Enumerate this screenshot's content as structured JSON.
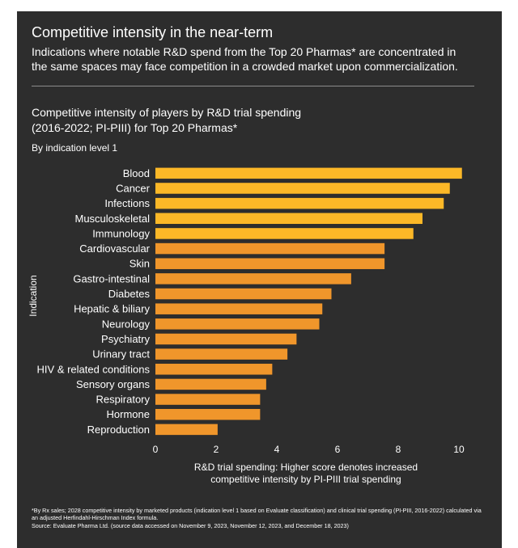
{
  "header": {
    "title": "Competitive intensity in the near-term",
    "subtitle": "Indications where notable R&D spend from the Top 20 Pharmas* are concentrated in the same spaces may face competition in a crowded market upon commercialization."
  },
  "chart_data": {
    "type": "bar",
    "orientation": "horizontal",
    "title_line1": "Competitive intensity of players by R&D trial spending",
    "title_line2": "(2016-2022; PI-PIII) for Top 20 Pharmas*",
    "subtitle": "By indication level 1",
    "ylabel": "Indication",
    "xlabel_line1": "R&D trial spending: Higher score denotes increased",
    "xlabel_line2": "competitive intensity by PI-PIII trial spending",
    "xlim": [
      0,
      10
    ],
    "xticks": [
      "0",
      "2",
      "4",
      "6",
      "8",
      "10"
    ],
    "grid": false,
    "categories": [
      "Blood",
      "Cancer",
      "Infections",
      "Musculoskeletal",
      "Immunology",
      "Cardiovascular",
      "Skin",
      "Gastro-intestinal",
      "Diabetes",
      "Hepatic & biliary",
      "Neurology",
      "Psychiatry",
      "Urinary tract",
      "HIV & related conditions",
      "Sensory organs",
      "Respiratory",
      "Hormone",
      "Reproduction"
    ],
    "values": [
      10.1,
      9.7,
      9.5,
      8.8,
      8.5,
      7.55,
      7.55,
      6.45,
      5.8,
      5.5,
      5.4,
      4.65,
      4.35,
      3.85,
      3.65,
      3.45,
      3.45,
      2.05
    ],
    "colors": [
      "#fcb827",
      "#fcb827",
      "#fcb827",
      "#fcb827",
      "#fcb827",
      "#f0962b",
      "#f0962b",
      "#f0962b",
      "#f0962b",
      "#f0962b",
      "#f0962b",
      "#f0962b",
      "#f0962b",
      "#f0962b",
      "#f0962b",
      "#f0962b",
      "#f0962b",
      "#f0962b"
    ]
  },
  "footnote": {
    "line1": "*By Rx sales; 2028 competitive intensity by marketed products (indication level 1 based on Evaluate classification) and clinical trial spending (PI-PIII, 2016-2022) calculated via an adjusted Herfindahl-Hirschman Index formula.",
    "line2": "Source: Evaluate Pharma Ltd. (source data accessed on November 9, 2023, November 12, 2023, and December 18, 2023)"
  },
  "colors": {
    "background": "#2d2d2d",
    "text": "#ffffff",
    "bar_top": "#fcb827",
    "bar_rest": "#f0962b"
  }
}
